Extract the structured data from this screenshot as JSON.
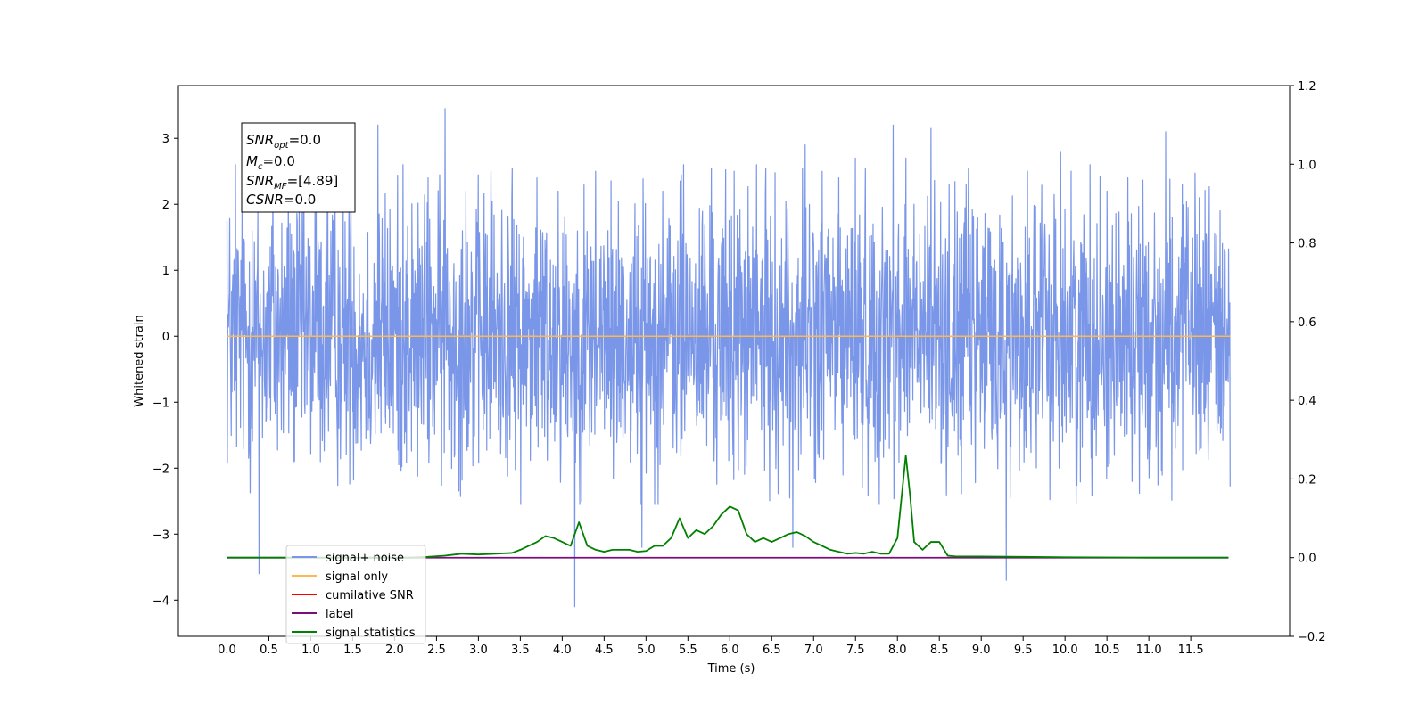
{
  "chart_data": {
    "type": "line",
    "title": "",
    "xlabel": "Time (s)",
    "ylabel": "Whitened strain",
    "x_range": [
      -0.58,
      12.68
    ],
    "xticks": [
      "0.0",
      "0.5",
      "1.0",
      "1.5",
      "2.0",
      "2.5",
      "3.0",
      "3.5",
      "4.0",
      "4.5",
      "5.0",
      "5.5",
      "6.0",
      "6.5",
      "7.0",
      "7.5",
      "8.0",
      "8.5",
      "9.0",
      "9.5",
      "10.0",
      "10.5",
      "11.0",
      "11.5"
    ],
    "y_left_range": [
      -4.55,
      3.8
    ],
    "y_left_ticks": [
      "−4",
      "−3",
      "−2",
      "−1",
      "0",
      "1",
      "2",
      "3"
    ],
    "y_right_range": [
      -0.2,
      1.2
    ],
    "y_right_ticks": [
      "−0.2",
      "0.0",
      "0.2",
      "0.4",
      "0.6",
      "0.8",
      "1.0",
      "1.2"
    ],
    "grid": false,
    "legend_position": "lower-left",
    "annotation": {
      "snr_opt": {
        "base": "SNR",
        "sub": "opt",
        "value": "=0.0"
      },
      "mc": {
        "base": "M",
        "sub": "c",
        "value": "=0.0"
      },
      "snr_mf": {
        "base": "SNR",
        "sub": "MF",
        "value": "=[4.89]"
      },
      "csnr": {
        "base": "CSNR",
        "value": "=0.0"
      }
    },
    "series": [
      {
        "name": "signal+ noise",
        "axis": "left",
        "color": "#7a96e8",
        "description_of_values": "noise-dominated whitened strain, approx. uniform band between -2 and 2 with spikes up to 3.4 and down to -4.1",
        "spikes": [
          [
            0.0,
            1.75
          ],
          [
            0.1,
            2.6
          ],
          [
            0.18,
            1.9
          ],
          [
            0.3,
            1.6
          ],
          [
            0.38,
            -3.6
          ],
          [
            0.55,
            2.2
          ],
          [
            0.73,
            2.5
          ],
          [
            0.9,
            2.3
          ],
          [
            1.05,
            1.9
          ],
          [
            1.2,
            2.6
          ],
          [
            1.48,
            3.0
          ],
          [
            1.8,
            3.2
          ],
          [
            2.1,
            2.6
          ],
          [
            2.4,
            2.4
          ],
          [
            2.6,
            3.45
          ],
          [
            2.85,
            2.2
          ],
          [
            3.15,
            2.5
          ],
          [
            3.4,
            2.1
          ],
          [
            3.7,
            2.4
          ],
          [
            3.95,
            2.2
          ],
          [
            4.15,
            -4.1
          ],
          [
            4.4,
            2.5
          ],
          [
            4.95,
            -3.2
          ],
          [
            5.2,
            2.2
          ],
          [
            5.45,
            2.6
          ],
          [
            5.78,
            2.55
          ],
          [
            6.05,
            2.5
          ],
          [
            6.32,
            2.6
          ],
          [
            6.75,
            -3.2
          ],
          [
            6.9,
            2.9
          ],
          [
            7.1,
            2.5
          ],
          [
            7.3,
            2.4
          ],
          [
            7.5,
            2.7
          ],
          [
            7.95,
            3.2
          ],
          [
            8.1,
            2.7
          ],
          [
            8.2,
            2.0
          ],
          [
            8.4,
            3.15
          ],
          [
            8.82,
            2.3
          ],
          [
            9.3,
            -3.7
          ],
          [
            9.55,
            2.5
          ],
          [
            9.95,
            2.8
          ],
          [
            10.3,
            2.6
          ],
          [
            10.5,
            2.2
          ],
          [
            10.75,
            2.4
          ],
          [
            11.2,
            3.1
          ],
          [
            11.4,
            2.3
          ],
          [
            11.6,
            2.1
          ],
          [
            11.85,
            1.9
          ]
        ]
      },
      {
        "name": "signal only",
        "axis": "left",
        "color": "#ffb84d",
        "constant": 0.0
      },
      {
        "name": "cumilative SNR",
        "axis": "right",
        "color": "#ff0000",
        "constant": 0.0
      },
      {
        "name": "label",
        "axis": "right",
        "color": "#7b0e7b",
        "constant": 0.0
      },
      {
        "name": "signal statistics",
        "axis": "right",
        "color": "#008000",
        "x": [
          0.0,
          2.2,
          2.4,
          2.6,
          2.8,
          3.0,
          3.2,
          3.4,
          3.5,
          3.6,
          3.7,
          3.8,
          3.9,
          4.0,
          4.1,
          4.2,
          4.3,
          4.4,
          4.5,
          4.6,
          4.7,
          4.8,
          4.9,
          5.0,
          5.1,
          5.2,
          5.3,
          5.4,
          5.5,
          5.6,
          5.7,
          5.8,
          5.9,
          6.0,
          6.1,
          6.2,
          6.3,
          6.4,
          6.5,
          6.6,
          6.7,
          6.8,
          6.9,
          7.0,
          7.1,
          7.2,
          7.3,
          7.4,
          7.5,
          7.6,
          7.7,
          7.8,
          7.9,
          8.0,
          8.1,
          8.15,
          8.2,
          8.3,
          8.4,
          8.5,
          8.6,
          8.7,
          9.0,
          9.5,
          10.0,
          11.0,
          11.95
        ],
        "y": [
          0.0,
          0.0,
          0.002,
          0.005,
          0.01,
          0.008,
          0.01,
          0.012,
          0.02,
          0.03,
          0.04,
          0.055,
          0.05,
          0.04,
          0.03,
          0.09,
          0.03,
          0.02,
          0.015,
          0.02,
          0.02,
          0.02,
          0.015,
          0.017,
          0.03,
          0.03,
          0.05,
          0.1,
          0.05,
          0.07,
          0.06,
          0.08,
          0.11,
          0.13,
          0.12,
          0.06,
          0.04,
          0.05,
          0.04,
          0.05,
          0.06,
          0.065,
          0.055,
          0.04,
          0.03,
          0.02,
          0.015,
          0.01,
          0.012,
          0.01,
          0.015,
          0.01,
          0.01,
          0.05,
          0.26,
          0.16,
          0.04,
          0.02,
          0.04,
          0.04,
          0.005,
          0.003,
          0.003,
          0.002,
          0.001,
          0.0,
          0.0
        ]
      }
    ]
  }
}
